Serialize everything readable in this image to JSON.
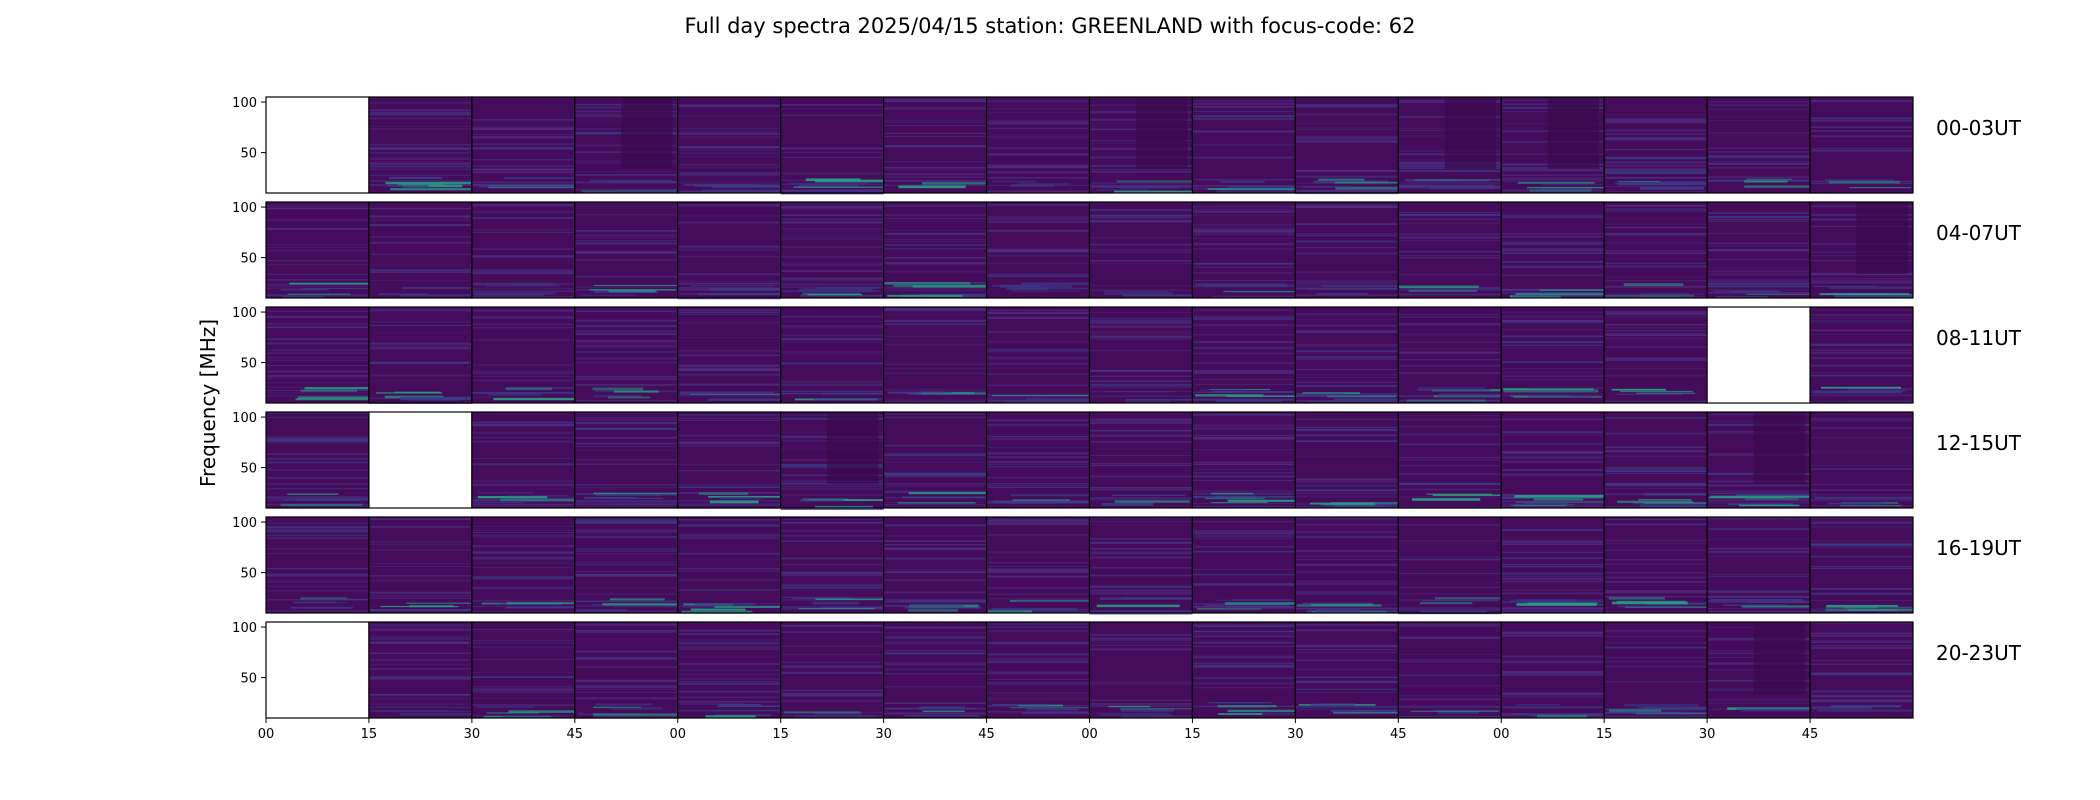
{
  "title": "Full day spectra 2025/04/15 station: GREENLAND with focus-code: 62",
  "colors": {
    "background": "#440c5a",
    "band": "#3b3d8a",
    "line": "#4f2f83",
    "dark": "#3b0a4e",
    "burst": "#26a184",
    "missing": "#ffffff",
    "axis": "#000000"
  },
  "chart_data": {
    "type": "heatmap",
    "colormap": "viridis",
    "title": "Full day spectra 2025/04/15 station: GREENLAND with focus-code: 62",
    "ylabel": "Frequency [MHz]",
    "ylim": [
      10,
      105
    ],
    "yticks": [
      "100",
      "50"
    ],
    "xticks": [
      "00",
      "15",
      "30",
      "45",
      "00",
      "15",
      "30",
      "45",
      "00",
      "15",
      "30",
      "45",
      "00",
      "15",
      "30",
      "45"
    ],
    "panels_per_row": 16,
    "panel_minutes": 15,
    "rows": [
      {
        "label": "00-03UT",
        "missing_panels": [
          0
        ]
      },
      {
        "label": "04-07UT",
        "missing_panels": []
      },
      {
        "label": "08-11UT",
        "missing_panels": [
          14
        ]
      },
      {
        "label": "12-15UT",
        "missing_panels": [
          1
        ]
      },
      {
        "label": "16-19UT",
        "missing_panels": []
      },
      {
        "label": "20-23UT",
        "missing_panels": [
          0
        ]
      }
    ]
  }
}
